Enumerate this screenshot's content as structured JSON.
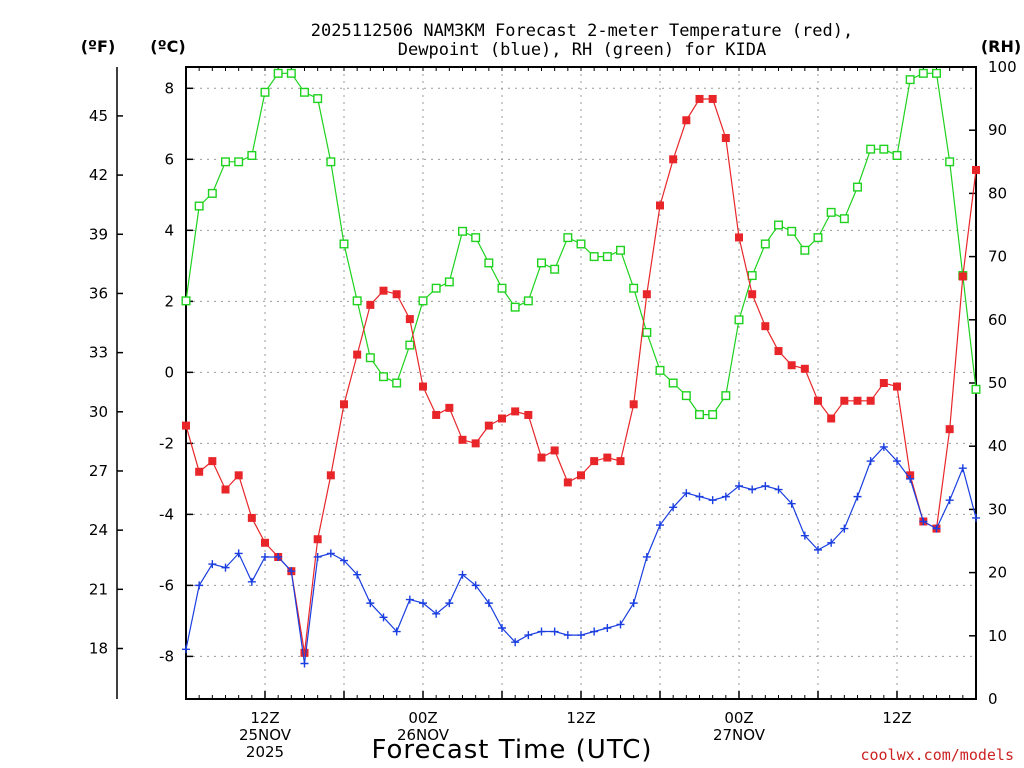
{
  "chart_data": {
    "type": "line",
    "title": [
      "2025112506 NAM3KM Forecast 2-meter Temperature (red),",
      "Dewpoint (blue), RH (green) for KIDA"
    ],
    "xlabel": "Forecast Time (UTC)",
    "left_outer_unit": "(ºF)",
    "left_unit": "(ºC)",
    "right_unit": "(RH)",
    "credit": "coolwx.com/models",
    "colors": {
      "temperature": "#e8262a",
      "dewpoint": "#1a3ee0",
      "rh": "#1ed21e",
      "grid": "#9a9a9a",
      "credit": "#cc2222"
    },
    "x_range_hours": [
      6,
      66
    ],
    "ylim_c": [
      -9.2,
      8.6
    ],
    "ylim_rh": [
      0,
      100
    ],
    "c_ticks": [
      -8,
      -6,
      -4,
      -2,
      0,
      2,
      4,
      6,
      8
    ],
    "f_ticks": [
      18,
      21,
      24,
      27,
      30,
      33,
      36,
      39,
      42,
      45
    ],
    "rh_ticks": [
      0,
      10,
      20,
      30,
      40,
      50,
      60,
      70,
      80,
      90,
      100
    ],
    "x_ticks": [
      {
        "hour": 12,
        "lines": [
          "12Z",
          "25NOV",
          "2025"
        ]
      },
      {
        "hour": 24,
        "lines": [
          "00Z",
          "26NOV"
        ]
      },
      {
        "hour": 36,
        "lines": [
          "12Z"
        ]
      },
      {
        "hour": 48,
        "lines": [
          "00Z",
          "27NOV"
        ]
      },
      {
        "hour": 60,
        "lines": [
          "12Z"
        ]
      }
    ],
    "series": [
      {
        "name": "Temperature",
        "unit": "C",
        "x": [
          6,
          7,
          8,
          9,
          10,
          11,
          12,
          13,
          14,
          15,
          16,
          17,
          18,
          19,
          20,
          21,
          22,
          23,
          24,
          25,
          26,
          27,
          28,
          29,
          30,
          31,
          32,
          33,
          34,
          35,
          36,
          37,
          38,
          39,
          40,
          41,
          42,
          43,
          44,
          45,
          46,
          47,
          48,
          49,
          50,
          51,
          52,
          53,
          54,
          55,
          56,
          57,
          58,
          59,
          60,
          61,
          62,
          63,
          64,
          65,
          66
        ],
        "values": [
          -1.5,
          -2.8,
          -2.5,
          -3.3,
          -2.9,
          -4.1,
          -4.8,
          -5.2,
          -5.6,
          -7.9,
          -4.7,
          -2.9,
          -0.9,
          0.5,
          1.9,
          2.3,
          2.2,
          1.5,
          -0.4,
          -1.2,
          -1.0,
          -1.9,
          -2.0,
          -1.5,
          -1.3,
          -1.1,
          -1.2,
          -2.4,
          -2.2,
          -3.1,
          -2.9,
          -2.5,
          -2.4,
          -2.5,
          -0.9,
          2.2,
          4.7,
          6.0,
          7.1,
          7.7,
          7.7,
          6.6,
          3.8,
          2.2,
          1.3,
          0.6,
          0.2,
          0.1,
          -0.8,
          -1.3,
          -0.8,
          -0.8,
          -0.8,
          -0.3,
          -0.4,
          -2.9,
          -4.2,
          -4.4,
          -1.6,
          2.7,
          5.7
        ]
      },
      {
        "name": "Dewpoint",
        "unit": "C",
        "x": [
          6,
          7,
          8,
          9,
          10,
          11,
          12,
          13,
          14,
          15,
          16,
          17,
          18,
          19,
          20,
          21,
          22,
          23,
          24,
          25,
          26,
          27,
          28,
          29,
          30,
          31,
          32,
          33,
          34,
          35,
          36,
          37,
          38,
          39,
          40,
          41,
          42,
          43,
          44,
          45,
          46,
          47,
          48,
          49,
          50,
          51,
          52,
          53,
          54,
          55,
          56,
          57,
          58,
          59,
          60,
          61,
          62,
          63,
          64,
          65,
          66
        ],
        "values": [
          -7.8,
          -6.0,
          -5.4,
          -5.5,
          -5.1,
          -5.9,
          -5.2,
          -5.2,
          -5.6,
          -8.2,
          -5.2,
          -5.1,
          -5.3,
          -5.7,
          -6.5,
          -6.9,
          -7.3,
          -6.4,
          -6.5,
          -6.8,
          -6.5,
          -5.7,
          -6.0,
          -6.5,
          -7.2,
          -7.6,
          -7.4,
          -7.3,
          -7.3,
          -7.4,
          -7.4,
          -7.3,
          -7.2,
          -7.1,
          -6.5,
          -5.2,
          -4.3,
          -3.8,
          -3.4,
          -3.5,
          -3.6,
          -3.5,
          -3.2,
          -3.3,
          -3.2,
          -3.3,
          -3.7,
          -4.6,
          -5.0,
          -4.8,
          -4.4,
          -3.5,
          -2.5,
          -2.1,
          -2.5,
          -3.0,
          -4.2,
          -4.4,
          -3.6,
          -2.7,
          -4.1
        ]
      },
      {
        "name": "RH",
        "unit": "%",
        "x": [
          6,
          7,
          8,
          9,
          10,
          11,
          12,
          13,
          14,
          15,
          16,
          17,
          18,
          19,
          20,
          21,
          22,
          23,
          24,
          25,
          26,
          27,
          28,
          29,
          30,
          31,
          32,
          33,
          34,
          35,
          36,
          37,
          38,
          39,
          40,
          41,
          42,
          43,
          44,
          45,
          46,
          47,
          48,
          49,
          50,
          51,
          52,
          53,
          54,
          55,
          56,
          57,
          58,
          59,
          60,
          61,
          62,
          63,
          64,
          65,
          66
        ],
        "values": [
          63,
          78,
          80,
          85,
          85,
          86,
          96,
          99,
          99,
          96,
          95,
          85,
          72,
          63,
          54,
          51,
          50,
          56,
          63,
          65,
          66,
          74,
          73,
          69,
          65,
          62,
          63,
          69,
          68,
          73,
          72,
          70,
          70,
          71,
          65,
          58,
          52,
          50,
          48,
          45,
          45,
          48,
          60,
          67,
          72,
          75,
          74,
          71,
          73,
          77,
          76,
          81,
          87,
          87,
          86,
          98,
          99,
          99,
          85,
          67,
          49
        ]
      }
    ]
  }
}
